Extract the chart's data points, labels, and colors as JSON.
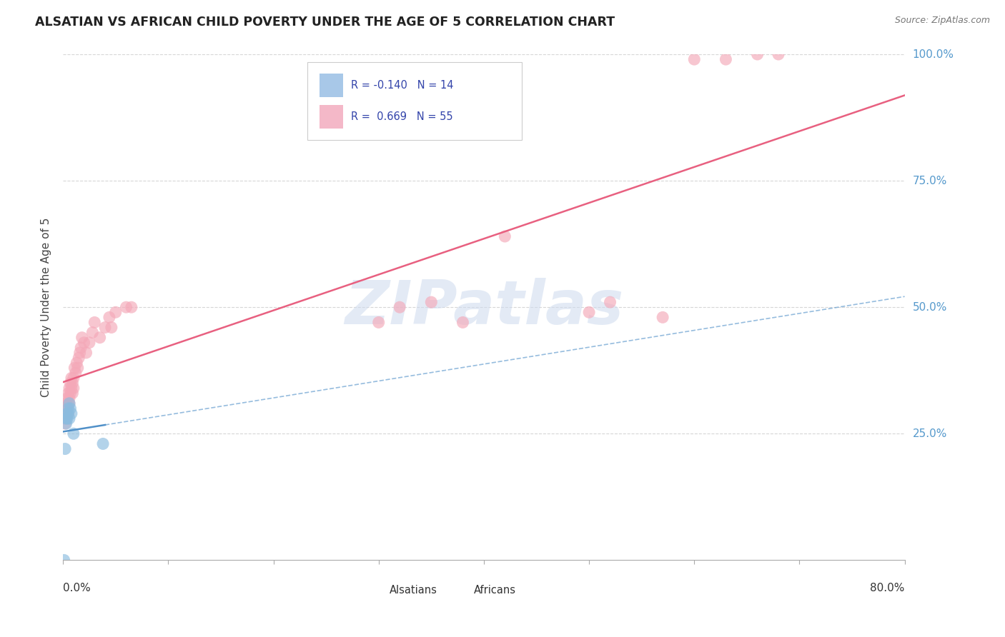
{
  "title": "ALSATIAN VS AFRICAN CHILD POVERTY UNDER THE AGE OF 5 CORRELATION CHART",
  "source": "Source: ZipAtlas.com",
  "ylabel": "Child Poverty Under the Age of 5",
  "alsatian_color": "#8bbcdf",
  "african_color": "#f4a8b8",
  "alsatian_line_color": "#5090c8",
  "african_line_color": "#e86080",
  "watermark_color": "#cddaee",
  "background_color": "#ffffff",
  "xlim": [
    0.0,
    0.8
  ],
  "ylim": [
    0.0,
    1.0
  ],
  "alsatian_x": [
    0.001,
    0.002,
    0.003,
    0.003,
    0.004,
    0.004,
    0.005,
    0.005,
    0.006,
    0.006,
    0.007,
    0.008,
    0.01,
    0.038
  ],
  "alsatian_y": [
    0.0,
    0.22,
    0.27,
    0.28,
    0.28,
    0.29,
    0.29,
    0.3,
    0.28,
    0.31,
    0.3,
    0.29,
    0.25,
    0.23
  ],
  "african_x": [
    0.001,
    0.001,
    0.002,
    0.002,
    0.003,
    0.003,
    0.003,
    0.004,
    0.004,
    0.005,
    0.005,
    0.005,
    0.006,
    0.006,
    0.006,
    0.007,
    0.007,
    0.008,
    0.008,
    0.009,
    0.009,
    0.01,
    0.01,
    0.011,
    0.012,
    0.013,
    0.014,
    0.015,
    0.016,
    0.017,
    0.018,
    0.02,
    0.022,
    0.025,
    0.028,
    0.03,
    0.035,
    0.04,
    0.044,
    0.046,
    0.05,
    0.06,
    0.065,
    0.3,
    0.32,
    0.35,
    0.38,
    0.42,
    0.5,
    0.52,
    0.57,
    0.6,
    0.63,
    0.66,
    0.68
  ],
  "african_y": [
    0.28,
    0.29,
    0.27,
    0.3,
    0.28,
    0.29,
    0.31,
    0.3,
    0.32,
    0.29,
    0.31,
    0.33,
    0.31,
    0.32,
    0.34,
    0.33,
    0.35,
    0.34,
    0.36,
    0.33,
    0.35,
    0.34,
    0.36,
    0.38,
    0.37,
    0.39,
    0.38,
    0.4,
    0.41,
    0.42,
    0.44,
    0.43,
    0.41,
    0.43,
    0.45,
    0.47,
    0.44,
    0.46,
    0.48,
    0.46,
    0.49,
    0.5,
    0.5,
    0.47,
    0.5,
    0.51,
    0.47,
    0.64,
    0.49,
    0.51,
    0.48,
    0.99,
    0.99,
    1.0,
    1.0
  ],
  "ytick_positions": [
    0.25,
    0.5,
    0.75,
    1.0
  ],
  "ytick_labels": [
    "25.0%",
    "50.0%",
    "75.0%",
    "100.0%"
  ]
}
